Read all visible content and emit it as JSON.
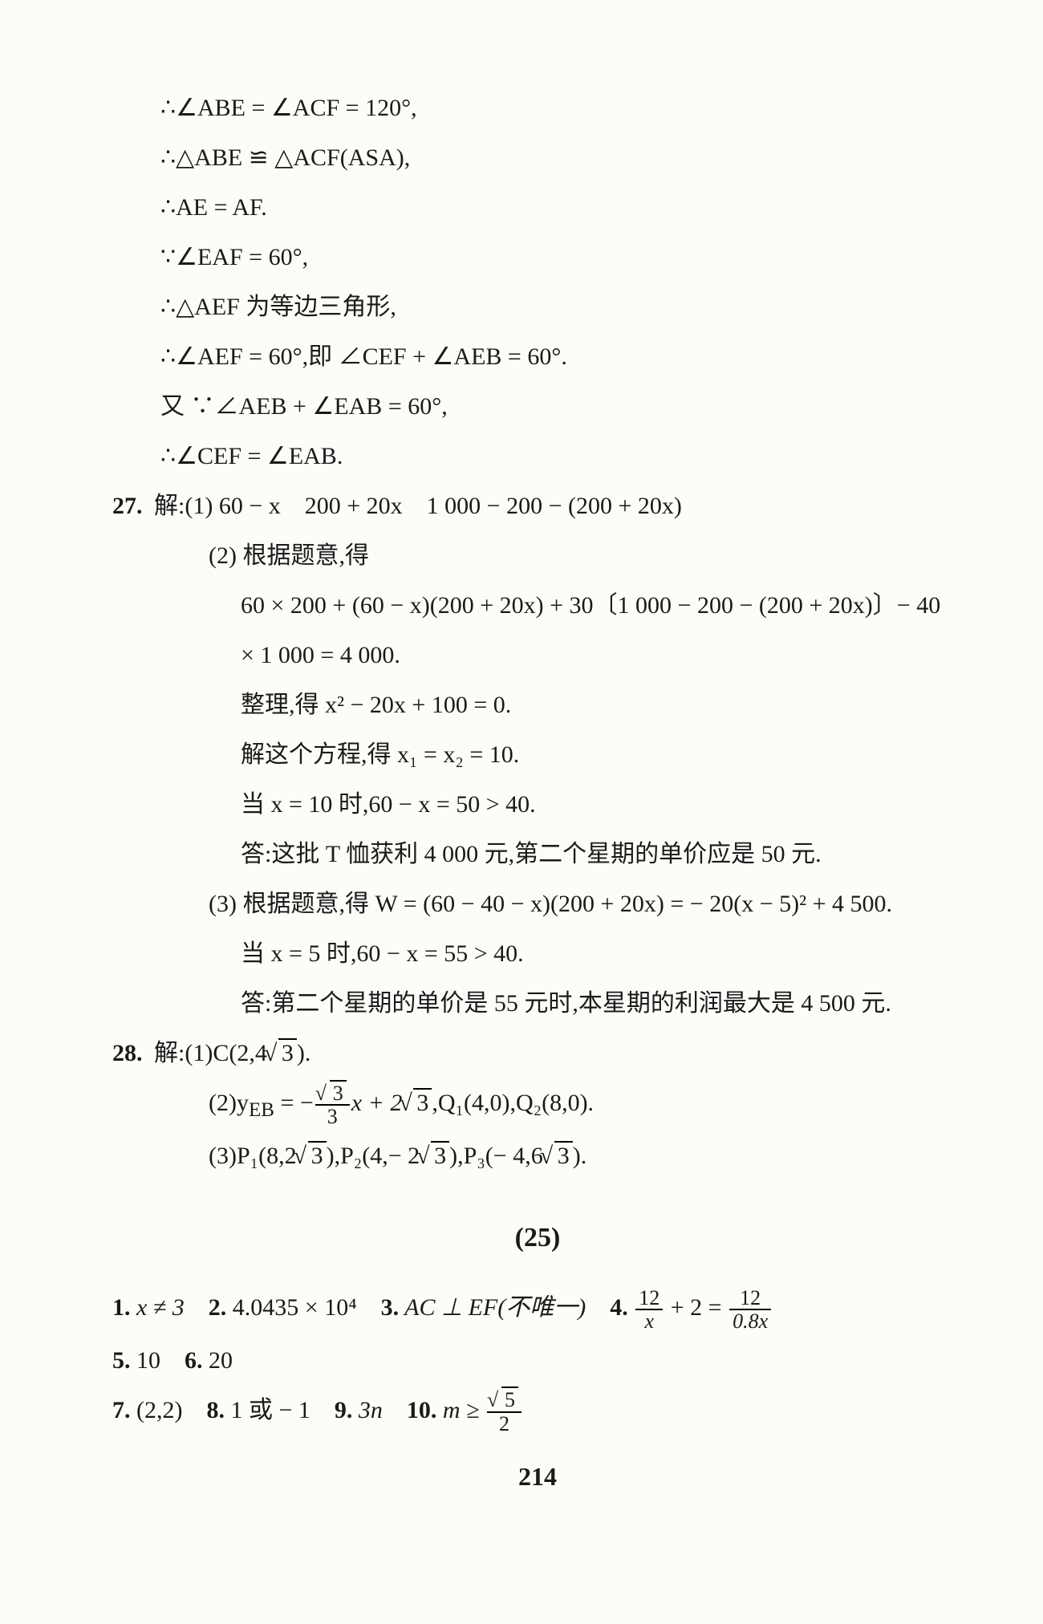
{
  "page_number": "214",
  "section_label": "(25)",
  "body_font_size_pt": 22,
  "text_color": "#1a1a1a",
  "background_color": "#fdfcf8",
  "proof": {
    "l1": "∴∠ABE = ∠ACF = 120°,",
    "l2": "∴△ABE ≌ △ACF(ASA),",
    "l3": "∴AE = AF.",
    "l4": "∵∠EAF = 60°,",
    "l5": "∴△AEF 为等边三角形,",
    "l6": "∴∠AEF = 60°,即 ∠CEF + ∠AEB = 60°.",
    "l7": "又 ∵∠AEB + ∠EAB = 60°,",
    "l8": "∴∠CEF = ∠EAB."
  },
  "q27": {
    "num": "27.",
    "head": "解:(1) 60 − x 200 + 20x 1 000 − 200 − (200 + 20x)",
    "p2head": "(2) 根据题意,得",
    "p2a": "60 × 200 + (60 − x)(200 + 20x) + 30〔1 000 − 200 − (200 + 20x)〕− 40",
    "p2b": "× 1 000 = 4 000.",
    "p2c": "整理,得 x² − 20x + 100 = 0.",
    "p2d": "解这个方程,得 x₁ = x₂ = 10.",
    "p2e": "当 x = 10 时,60 − x = 50 > 40.",
    "p2f": "答:这批 T 恤获利 4 000 元,第二个星期的单价应是 50 元.",
    "p3a": "(3) 根据题意,得 W = (60 − 40 − x)(200 + 20x) = − 20(x − 5)² + 4 500.",
    "p3b": "当 x = 5 时,60 − x = 55 > 40.",
    "p3c": "答:第二个星期的单价是 55 元时,本星期的利润最大是 4 500 元."
  },
  "q28": {
    "num": "28.",
    "p1_pre": "解:(1)C(2,4",
    "p1_post": ").",
    "p2_pre": "(2)y",
    "p2_sub": "EB",
    "p2_eq": " = −",
    "p2_mid": "x + 2",
    "p2_tail": ",Q₁(4,0),Q₂(8,0).",
    "p3_pre": "(3)P₁(8,2",
    "p3_mid1": "),P₂(4,− 2",
    "p3_mid2": "),P₃(− 4,6",
    "p3_post": ")."
  },
  "answers": {
    "a1num": "1.",
    "a1": " x ≠ 3",
    "a2num": "2.",
    "a2": " 4.0435 × 10⁴",
    "a3num": "3.",
    "a3": " AC ⊥ EF(不唯一)",
    "a4num": "4.",
    "a4post": " + 2 = ",
    "a5num": "5.",
    "a5": " 10",
    "a6num": "6.",
    "a6": " 20",
    "a7num": "7.",
    "a7": " (2,2)",
    "a8num": "8.",
    "a8": " 1 或 − 1",
    "a9num": "9.",
    "a9": " 3n",
    "a10num": "10.",
    "a10pre": " m ≥ "
  },
  "frac": {
    "sqrt3": "3",
    "three": "3",
    "n12": "12",
    "dx": "x",
    "d08x": "0.8x",
    "nsqrt5": "5",
    "d2": "2"
  },
  "rad3": "3"
}
